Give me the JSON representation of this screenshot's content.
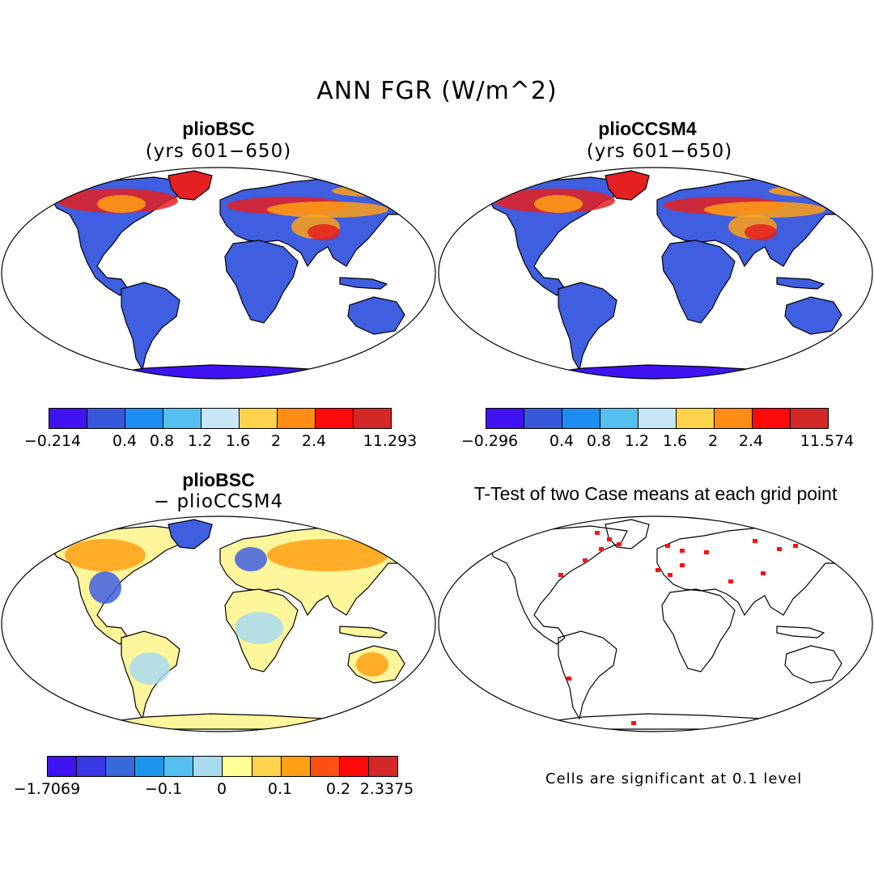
{
  "title": "ANN FGR (W/m^2)",
  "panels": {
    "top_left": {
      "title": "plioBSC",
      "subtitle": "(yrs 601−650)",
      "colorbar": {
        "colors": [
          "#3f14f0",
          "#3858dc",
          "#1e8cf0",
          "#55bff0",
          "#c8e6f5",
          "#ffd24b",
          "#ff8c14",
          "#ff0a0a",
          "#d22828"
        ],
        "ticks": [
          "−0.214",
          "0.4",
          "0.8",
          "1.2",
          "1.6",
          "2",
          "2.4",
          "11.293"
        ]
      }
    },
    "top_right": {
      "title": "plioCCSM4",
      "subtitle": "(yrs 601−650)",
      "colorbar": {
        "colors": [
          "#3f14f0",
          "#3858dc",
          "#1e8cf0",
          "#55bff0",
          "#c8e6f5",
          "#ffd24b",
          "#ff8c14",
          "#ff0a0a",
          "#d22828"
        ],
        "ticks": [
          "−0.296",
          "0.4",
          "0.8",
          "1.2",
          "1.6",
          "2",
          "2.4",
          "11.574"
        ]
      }
    },
    "bottom_left": {
      "title": "plioBSC",
      "subtitle": "− plioCCSM4",
      "colorbar": {
        "colors": [
          "#3f14f0",
          "#3838e6",
          "#3868dc",
          "#1e96f0",
          "#55bff0",
          "#a8daf0",
          "#ffff96",
          "#ffd24b",
          "#ffa014",
          "#ff5014",
          "#ff0a0a",
          "#d22828"
        ],
        "ticks": [
          "−1.7069",
          "−0.1",
          "0",
          "0.1",
          "0.2",
          "2.3375"
        ]
      }
    },
    "bottom_right": {
      "title": "T-Test of two Case means at each grid point",
      "note": "Cells are significant at 0.1 level"
    }
  },
  "palette": {
    "land_base": "#3f5ee0",
    "land_warm": "#ffa014",
    "land_hot": "#e52020",
    "land_pale": "#fff59a",
    "land_lightblue": "#a8daf0",
    "antarctica": "#3f14f0",
    "significant": "#ff1010"
  }
}
